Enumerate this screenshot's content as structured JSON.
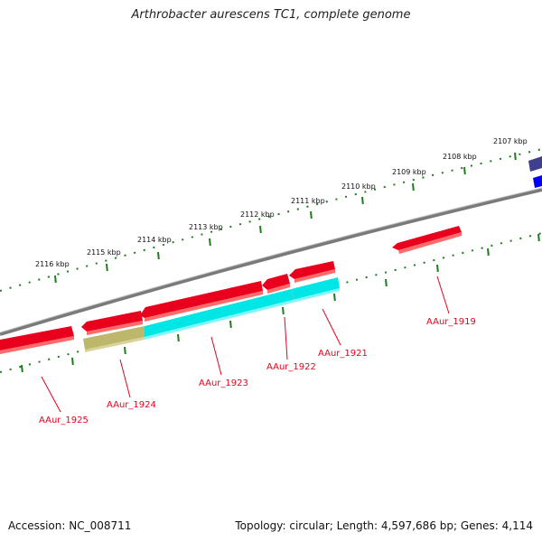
{
  "title": "Arthrobacter aurescens TC1, complete genome",
  "footer": {
    "accession": "Accession: NC_008711",
    "topology": "Topology: circular; Length: 4,597,686 bp; Genes: 4,114"
  },
  "colors": {
    "backbone": "#7a7a7a",
    "scale_dots": "#1e7d1e",
    "gene_forward_red": "#e8001c",
    "gene_cds_cyan": "#00e5e5",
    "gene_khaki": "#bdb76b",
    "gene_blue": "#0000ff",
    "gene_navy": "#3f3f8f",
    "label_red": "#e8001c"
  },
  "scale_labels": [
    "2107 kbp",
    "2108 kbp",
    "2109 kbp",
    "2110 kbp",
    "2111 kbp",
    "2112 kbp",
    "2113 kbp",
    "2114 kbp",
    "2115 kbp",
    "2116 kbp"
  ],
  "gene_labels": [
    "AAur_1919",
    "AAur_1921",
    "AAur_1922",
    "AAur_1923",
    "AAur_1924",
    "AAur_1925"
  ]
}
